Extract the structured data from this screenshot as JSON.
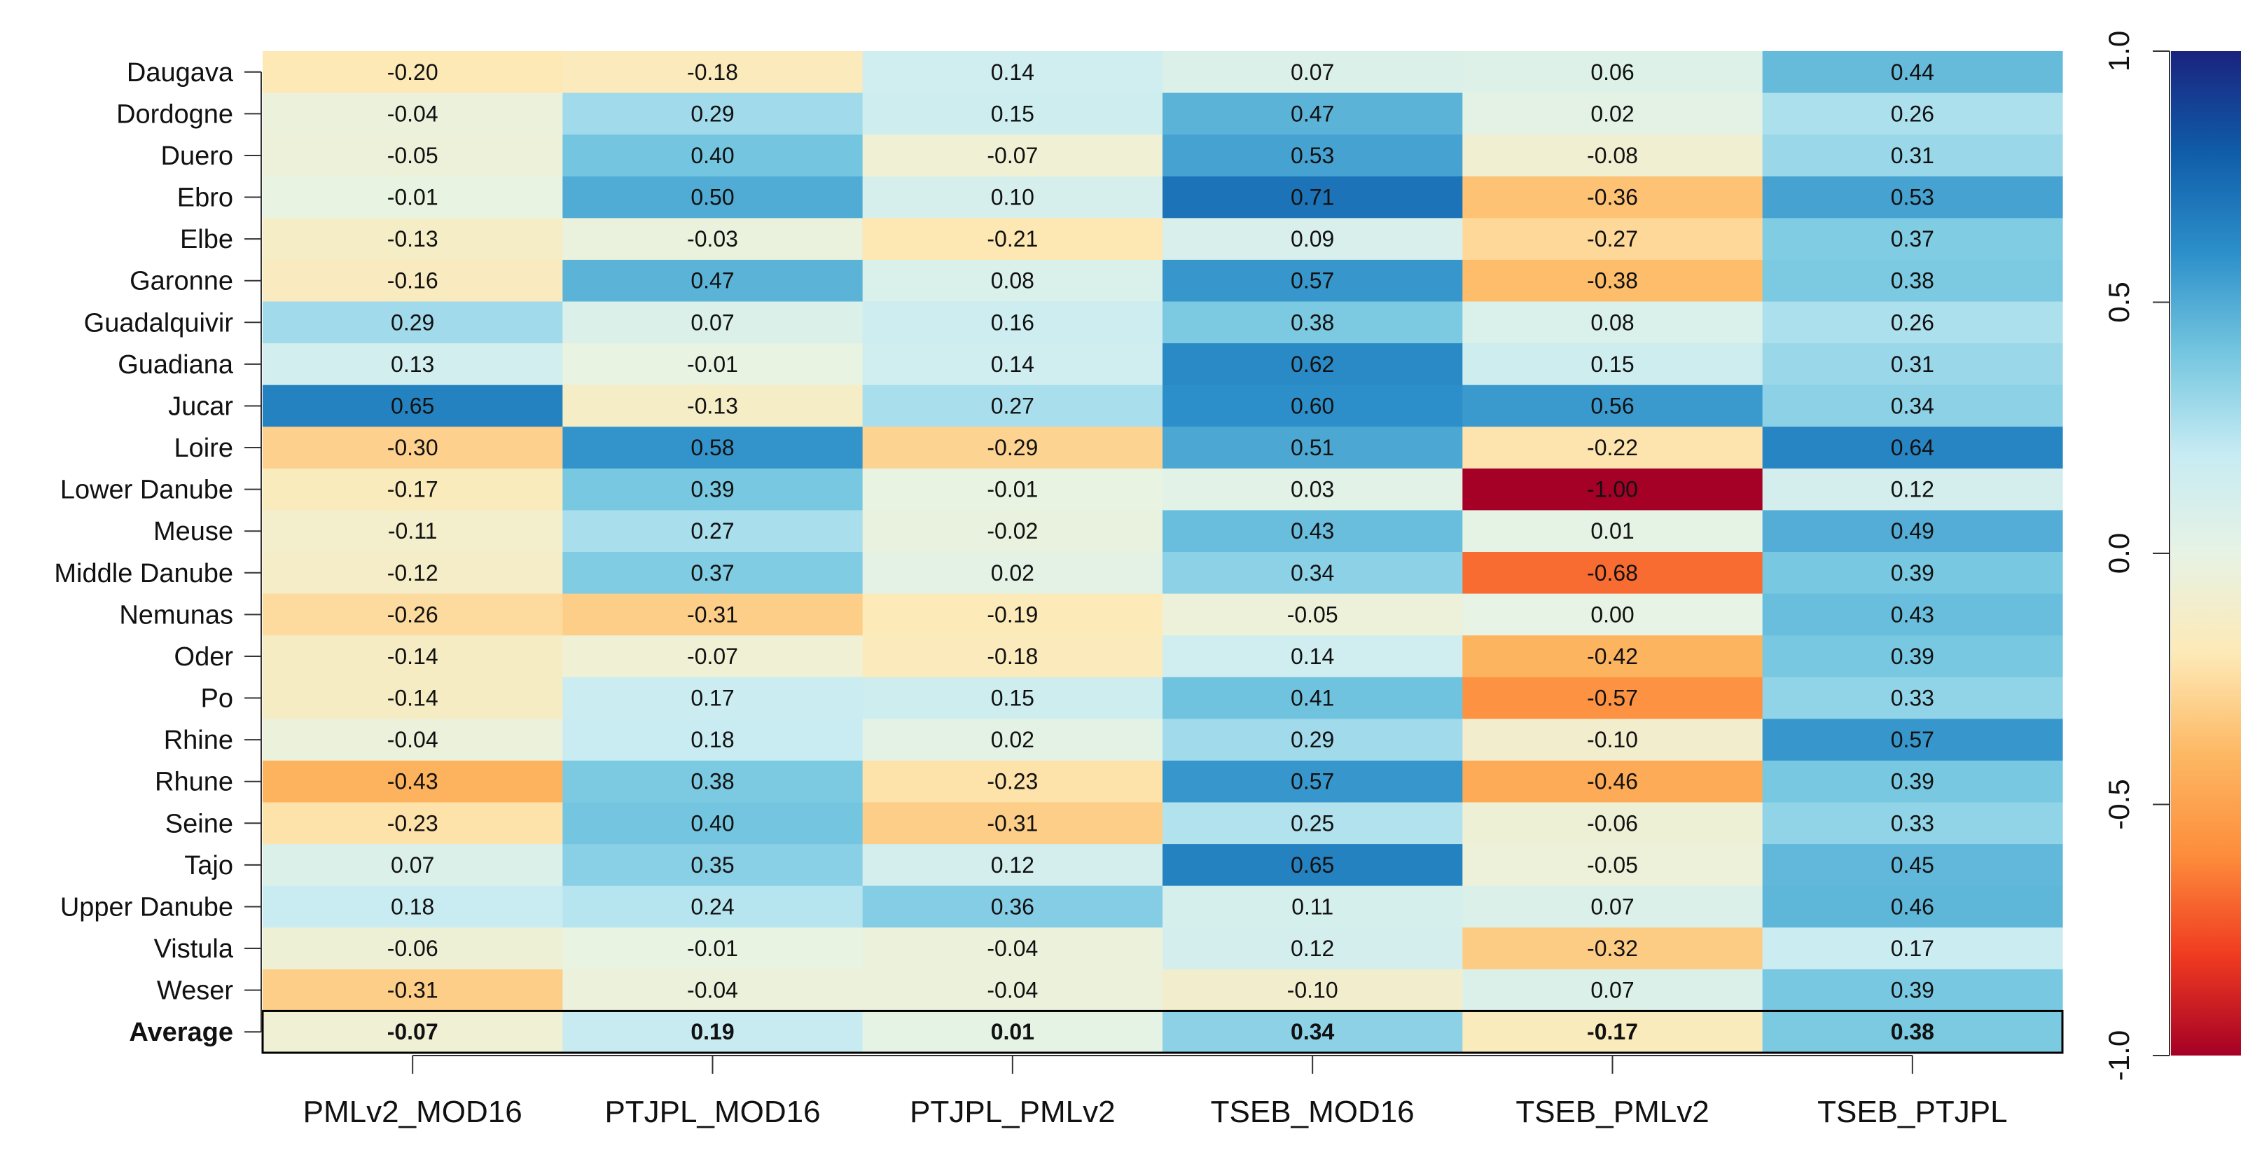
{
  "chart_data": {
    "type": "heatmap",
    "title": "",
    "xlabel": "",
    "ylabel": "",
    "columns": [
      "PMLv2_MOD16",
      "PTJPL_MOD16",
      "PTJPL_PMLv2",
      "TSEB_MOD16",
      "TSEB_PMLv2",
      "TSEB_PTJPL"
    ],
    "rows": [
      "Daugava",
      "Dordogne",
      "Duero",
      "Ebro",
      "Elbe",
      "Garonne",
      "Guadalquivir",
      "Guadiana",
      "Jucar",
      "Loire",
      "Lower Danube",
      "Meuse",
      "Middle Danube",
      "Nemunas",
      "Oder",
      "Po",
      "Rhine",
      "Rhune",
      "Seine",
      "Tajo",
      "Upper Danube",
      "Vistula",
      "Weser",
      "Average"
    ],
    "values": [
      [
        "-0.20",
        "-0.18",
        "0.14",
        "0.07",
        "0.06",
        "0.44"
      ],
      [
        "-0.04",
        "0.29",
        "0.15",
        "0.47",
        "0.02",
        "0.26"
      ],
      [
        "-0.05",
        "0.40",
        "-0.07",
        "0.53",
        "-0.08",
        "0.31"
      ],
      [
        "-0.01",
        "0.50",
        "0.10",
        "0.71",
        "-0.36",
        "0.53"
      ],
      [
        "-0.13",
        "-0.03",
        "-0.21",
        "0.09",
        "-0.27",
        "0.37"
      ],
      [
        "-0.16",
        "0.47",
        "0.08",
        "0.57",
        "-0.38",
        "0.38"
      ],
      [
        "0.29",
        "0.07",
        "0.16",
        "0.38",
        "0.08",
        "0.26"
      ],
      [
        "0.13",
        "-0.01",
        "0.14",
        "0.62",
        "0.15",
        "0.31"
      ],
      [
        "0.65",
        "-0.13",
        "0.27",
        "0.60",
        "0.56",
        "0.34"
      ],
      [
        "-0.30",
        "0.58",
        "-0.29",
        "0.51",
        "-0.22",
        "0.64"
      ],
      [
        "-0.17",
        "0.39",
        "-0.01",
        "0.03",
        "-1.00",
        "0.12"
      ],
      [
        "-0.11",
        "0.27",
        "-0.02",
        "0.43",
        "0.01",
        "0.49"
      ],
      [
        "-0.12",
        "0.37",
        "0.02",
        "0.34",
        "-0.68",
        "0.39"
      ],
      [
        "-0.26",
        "-0.31",
        "-0.19",
        "-0.05",
        "0.00",
        "0.43"
      ],
      [
        "-0.14",
        "-0.07",
        "-0.18",
        "0.14",
        "-0.42",
        "0.39"
      ],
      [
        "-0.14",
        "0.17",
        "0.15",
        "0.41",
        "-0.57",
        "0.33"
      ],
      [
        "-0.04",
        "0.18",
        "0.02",
        "0.29",
        "-0.10",
        "0.57"
      ],
      [
        "-0.43",
        "0.38",
        "-0.23",
        "0.57",
        "-0.46",
        "0.39"
      ],
      [
        "-0.23",
        "0.40",
        "-0.31",
        "0.25",
        "-0.06",
        "0.33"
      ],
      [
        "0.07",
        "0.35",
        "0.12",
        "0.65",
        "-0.05",
        "0.45"
      ],
      [
        "0.18",
        "0.24",
        "0.36",
        "0.11",
        "0.07",
        "0.46"
      ],
      [
        "-0.06",
        "-0.01",
        "-0.04",
        "0.12",
        "-0.32",
        "0.17"
      ],
      [
        "-0.31",
        "-0.04",
        "-0.04",
        "-0.10",
        "0.07",
        "0.39"
      ],
      [
        "-0.07",
        "0.19",
        "0.01",
        "0.34",
        "-0.17",
        "0.38"
      ]
    ],
    "highlighted_row": "Average",
    "colorbar": {
      "range": [
        -1.0,
        1.0
      ],
      "tick_labels": [
        "-1.0",
        "-0.5",
        "0.0",
        "0.5",
        "1.0"
      ],
      "colormap": [
        "#a50026",
        "#f03b20",
        "#fd8d3c",
        "#fdb863",
        "#fde9b6",
        "#e7f3e4",
        "#c6ebf3",
        "#74c6e0",
        "#2c8fc9",
        "#0f5ca8",
        "#1a237e"
      ]
    },
    "grid": false,
    "legend_position": "right"
  }
}
